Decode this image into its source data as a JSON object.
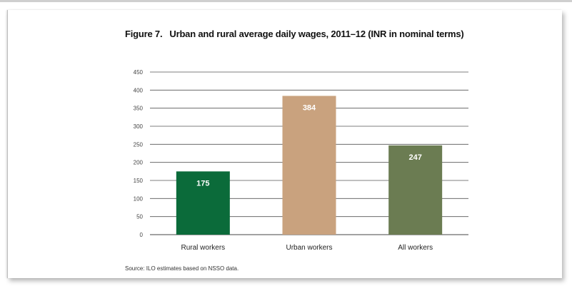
{
  "figure_label": "Figure 7.",
  "source": "Source: ILO estimates based on NSSO data.",
  "chart_data": {
    "type": "bar",
    "title": "Urban and rural average daily wages, 2011–12 (INR in nominal terms)",
    "xlabel": "",
    "ylabel": "",
    "categories": [
      "Rural workers",
      "Urban workers",
      "All workers"
    ],
    "values": [
      175,
      384,
      247
    ],
    "data_labels": [
      "175",
      "384",
      "247"
    ],
    "bar_colors": [
      "#0b6b3a",
      "#c9a27e",
      "#6b7c52"
    ],
    "ylim": [
      0,
      450
    ],
    "yticks": [
      0,
      50,
      100,
      150,
      200,
      250,
      300,
      350,
      400,
      450
    ],
    "grid": true,
    "legend": "none"
  }
}
